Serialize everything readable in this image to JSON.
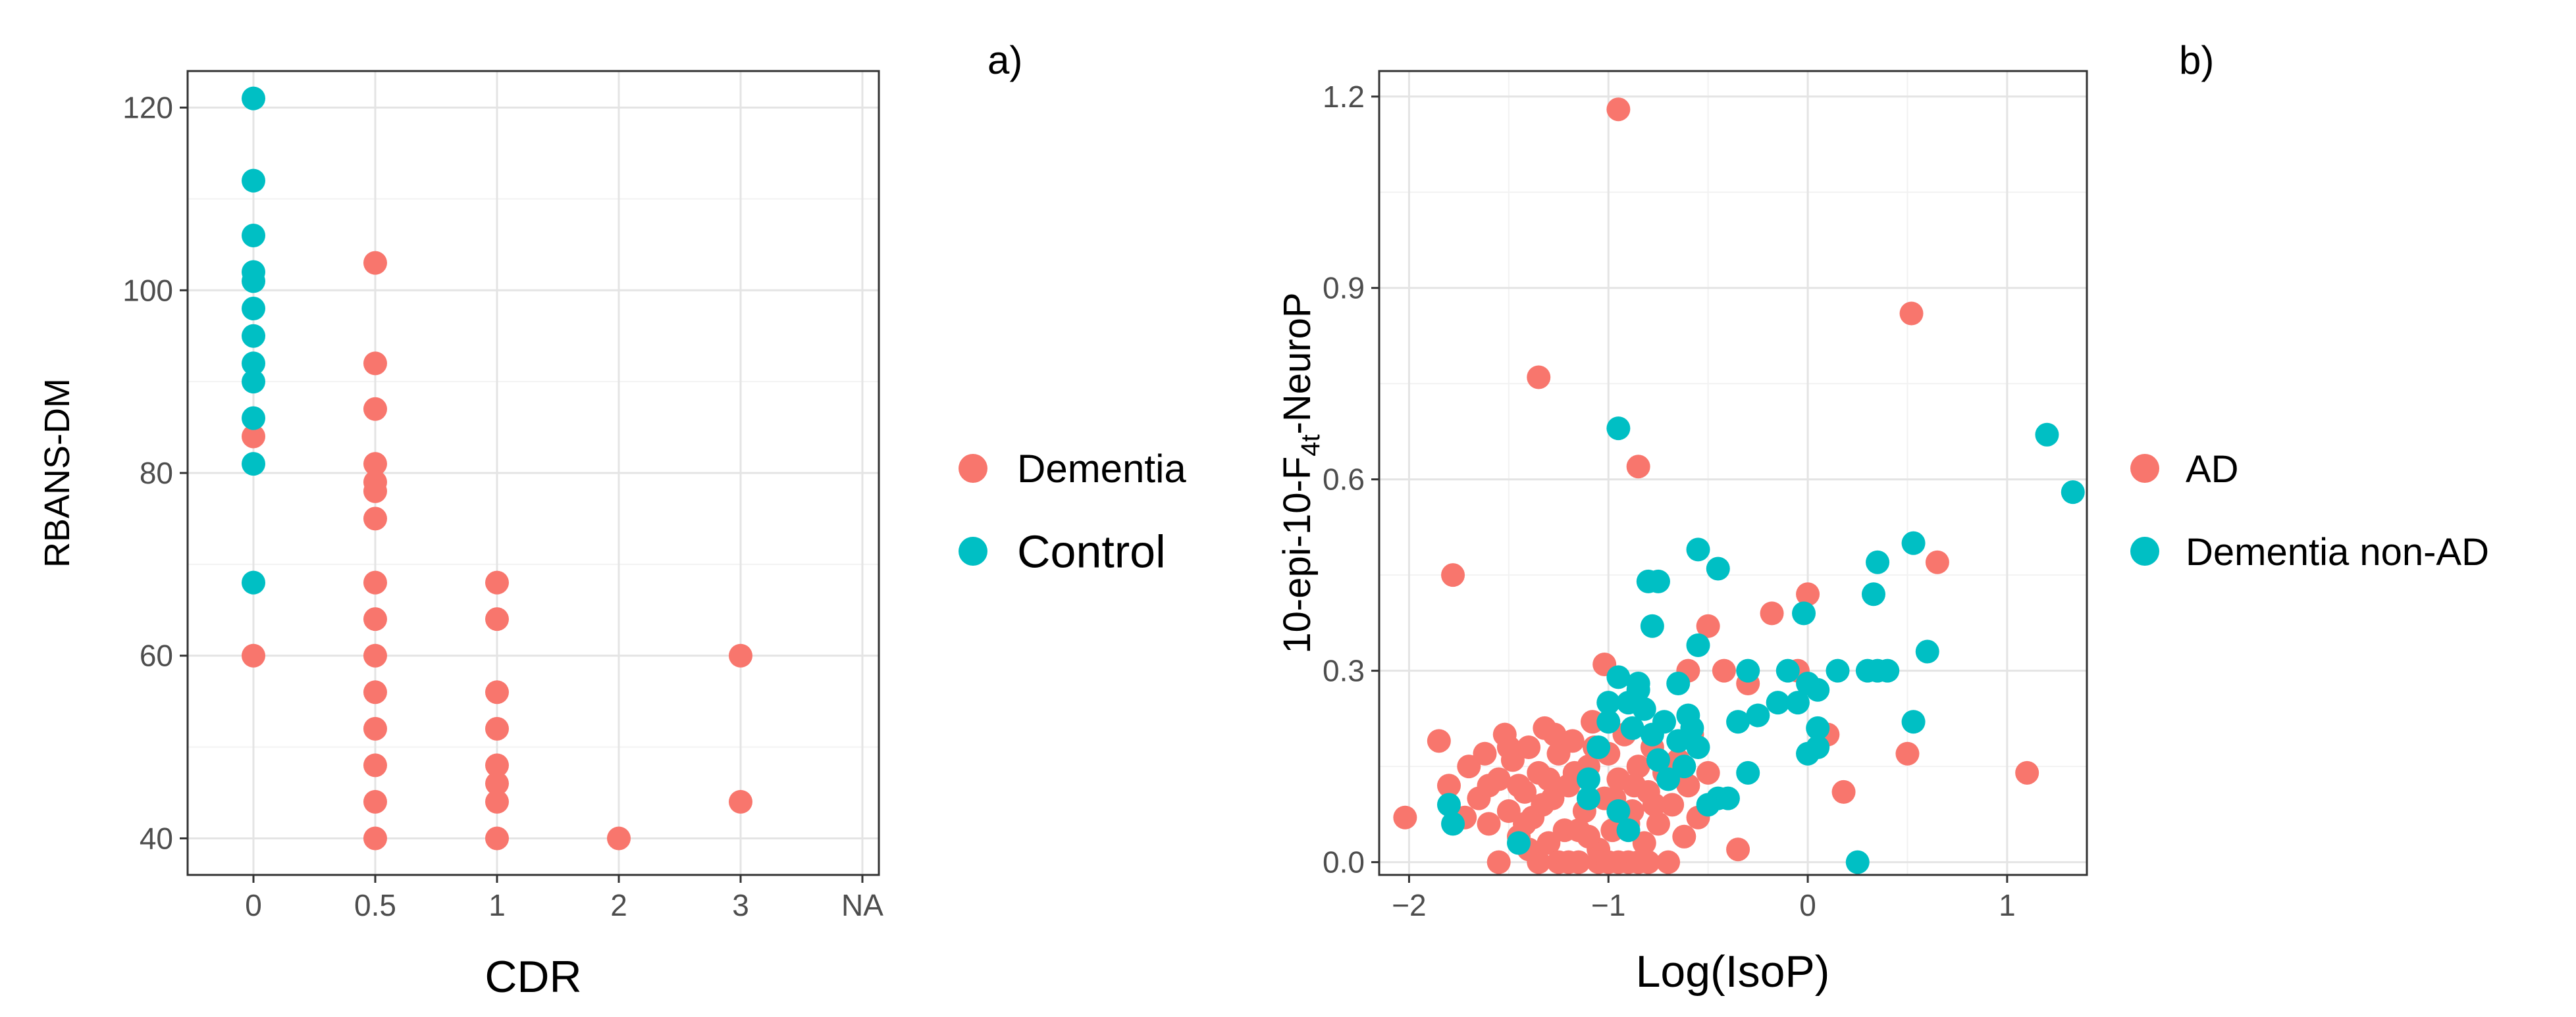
{
  "panels": [
    {
      "letter": "a)"
    },
    {
      "letter": "b)"
    }
  ],
  "colors": {
    "red": "#F8766D",
    "teal": "#00BFC4",
    "grid_major": "#E4E4E4",
    "grid_minor": "#F2F2F2",
    "panel_border": "#333333",
    "text": "#4D4D4D"
  },
  "chart_data": [
    {
      "type": "scatter",
      "title": "",
      "xlabel": "CDR",
      "ylabel": "RBANS-DM",
      "x_scale": "categorical",
      "x_categories": [
        "0",
        "0.5",
        "1",
        "2",
        "3",
        "NA"
      ],
      "yticks": [
        40,
        60,
        80,
        100,
        120
      ],
      "ylim": [
        36,
        124
      ],
      "grid": true,
      "legend": {
        "placement": "right",
        "entries": [
          "Dementia",
          "Control"
        ]
      },
      "series": [
        {
          "name": "Dementia",
          "color": "#F8766D",
          "points": [
            [
              "0",
              84
            ],
            [
              "0",
              60
            ],
            [
              "0.5",
              103
            ],
            [
              "0.5",
              92
            ],
            [
              "0.5",
              87
            ],
            [
              "0.5",
              81
            ],
            [
              "0.5",
              79
            ],
            [
              "0.5",
              78
            ],
            [
              "0.5",
              75
            ],
            [
              "0.5",
              68
            ],
            [
              "0.5",
              64
            ],
            [
              "0.5",
              60
            ],
            [
              "0.5",
              56
            ],
            [
              "0.5",
              52
            ],
            [
              "0.5",
              48
            ],
            [
              "0.5",
              44
            ],
            [
              "0.5",
              40
            ],
            [
              "1",
              68
            ],
            [
              "1",
              64
            ],
            [
              "1",
              56
            ],
            [
              "1",
              52
            ],
            [
              "1",
              48
            ],
            [
              "1",
              46
            ],
            [
              "1",
              44
            ],
            [
              "1",
              40
            ],
            [
              "2",
              40
            ],
            [
              "3",
              60
            ],
            [
              "3",
              44
            ]
          ]
        },
        {
          "name": "Control",
          "color": "#00BFC4",
          "points": [
            [
              "0",
              121
            ],
            [
              "0",
              112
            ],
            [
              "0",
              106
            ],
            [
              "0",
              102
            ],
            [
              "0",
              101
            ],
            [
              "0",
              98
            ],
            [
              "0",
              95
            ],
            [
              "0",
              92
            ],
            [
              "0",
              90
            ],
            [
              "0",
              86
            ],
            [
              "0",
              81
            ],
            [
              "0",
              68
            ]
          ]
        }
      ]
    },
    {
      "type": "scatter",
      "title": "",
      "xlabel": "Log(IsoP)",
      "ylabel": "10-epi-10-F4t-NeuroP",
      "ylabel_parts": {
        "main": "10-epi-10-F",
        "sub": "4t",
        "tail": "-NeuroP"
      },
      "xticks": [
        -2,
        -1,
        0,
        1
      ],
      "yticks": [
        0.0,
        0.3,
        0.6,
        0.9,
        1.2
      ],
      "ytick_labels": [
        "0.0",
        "0.3",
        "0.6",
        "0.9",
        "1.2"
      ],
      "xlim": [
        -2.15,
        1.4
      ],
      "ylim": [
        -0.02,
        1.24
      ],
      "grid": true,
      "legend": {
        "placement": "right",
        "entries": [
          "AD",
          "Dementia non-AD"
        ]
      },
      "series": [
        {
          "name": "AD",
          "color": "#F8766D",
          "points": [
            [
              -0.95,
              1.18
            ],
            [
              0.52,
              0.86
            ],
            [
              -1.35,
              0.76
            ],
            [
              -0.85,
              0.62
            ],
            [
              -1.78,
              0.45
            ],
            [
              0.65,
              0.47
            ],
            [
              0.0,
              0.42
            ],
            [
              -0.18,
              0.39
            ],
            [
              -0.5,
              0.37
            ],
            [
              -0.6,
              0.3
            ],
            [
              -0.42,
              0.3
            ],
            [
              -0.3,
              0.28
            ],
            [
              -0.05,
              0.3
            ],
            [
              -1.02,
              0.31
            ],
            [
              -1.85,
              0.19
            ],
            [
              -2.02,
              0.07
            ],
            [
              0.5,
              0.17
            ],
            [
              1.1,
              0.14
            ],
            [
              0.18,
              0.11
            ],
            [
              0.1,
              0.2
            ],
            [
              -0.35,
              0.02
            ],
            [
              -0.5,
              0.14
            ],
            [
              -1.7,
              0.15
            ],
            [
              -1.65,
              0.1
            ],
            [
              -1.62,
              0.17
            ],
            [
              -1.6,
              0.06
            ],
            [
              -1.55,
              0.13
            ],
            [
              -1.52,
              0.2
            ],
            [
              -1.5,
              0.08
            ],
            [
              -1.48,
              0.16
            ],
            [
              -1.45,
              0.04
            ],
            [
              -1.42,
              0.11
            ],
            [
              -1.4,
              0.18
            ],
            [
              -1.38,
              0.07
            ],
            [
              -1.35,
              0.14
            ],
            [
              -1.32,
              0.21
            ],
            [
              -1.3,
              0.03
            ],
            [
              -1.28,
              0.1
            ],
            [
              -1.25,
              0.17
            ],
            [
              -1.22,
              0.05
            ],
            [
              -1.2,
              0.12
            ],
            [
              -1.18,
              0.19
            ],
            [
              -1.15,
              0.0
            ],
            [
              -1.12,
              0.08
            ],
            [
              -1.1,
              0.15
            ],
            [
              -1.08,
              0.22
            ],
            [
              -1.05,
              0.02
            ],
            [
              -1.02,
              0.1
            ],
            [
              -1.0,
              0.17
            ],
            [
              -0.98,
              0.05
            ],
            [
              -0.95,
              0.13
            ],
            [
              -0.92,
              0.2
            ],
            [
              -0.9,
              0.0
            ],
            [
              -0.88,
              0.08
            ],
            [
              -0.85,
              0.15
            ],
            [
              -0.82,
              0.03
            ],
            [
              -0.8,
              0.11
            ],
            [
              -0.78,
              0.18
            ],
            [
              -0.75,
              0.06
            ],
            [
              -0.72,
              0.14
            ],
            [
              -0.7,
              0.0
            ],
            [
              -0.68,
              0.09
            ],
            [
              -0.65,
              0.16
            ],
            [
              -0.62,
              0.04
            ],
            [
              -0.6,
              0.12
            ],
            [
              -0.58,
              0.2
            ],
            [
              -0.55,
              0.07
            ],
            [
              -1.45,
              0.12
            ],
            [
              -1.35,
              0.0
            ],
            [
              -1.25,
              0.0
            ],
            [
              -1.15,
              0.05
            ],
            [
              -1.05,
              0.0
            ],
            [
              -0.95,
              0.0
            ],
            [
              -0.85,
              0.0
            ],
            [
              -1.55,
              0.0
            ],
            [
              -1.4,
              0.02
            ],
            [
              -1.3,
              0.13
            ],
            [
              -1.2,
              0.0
            ],
            [
              -1.1,
              0.04
            ],
            [
              -1.0,
              0.0
            ],
            [
              -0.9,
              0.06
            ],
            [
              -0.8,
              0.0
            ],
            [
              -1.6,
              0.12
            ],
            [
              -1.5,
              0.18
            ],
            [
              -1.42,
              0.06
            ],
            [
              -1.33,
              0.09
            ],
            [
              -1.27,
              0.2
            ],
            [
              -1.17,
              0.14
            ],
            [
              -1.07,
              0.18
            ],
            [
              -0.97,
              0.1
            ],
            [
              -0.87,
              0.12
            ],
            [
              -0.77,
              0.09
            ],
            [
              -1.72,
              0.07
            ],
            [
              -1.8,
              0.12
            ]
          ]
        },
        {
          "name": "Dementia non-AD",
          "color": "#00BFC4",
          "points": [
            [
              1.2,
              0.67
            ],
            [
              1.33,
              0.58
            ],
            [
              -0.95,
              0.68
            ],
            [
              0.53,
              0.5
            ],
            [
              -0.55,
              0.49
            ],
            [
              -0.45,
              0.46
            ],
            [
              0.35,
              0.47
            ],
            [
              0.33,
              0.42
            ],
            [
              -0.8,
              0.44
            ],
            [
              -0.75,
              0.44
            ],
            [
              -0.55,
              0.34
            ],
            [
              0.6,
              0.33
            ],
            [
              -0.78,
              0.37
            ],
            [
              -0.02,
              0.39
            ],
            [
              -0.3,
              0.3
            ],
            [
              -0.1,
              0.3
            ],
            [
              0.05,
              0.27
            ],
            [
              0.15,
              0.3
            ],
            [
              0.3,
              0.3
            ],
            [
              0.35,
              0.3
            ],
            [
              0.4,
              0.3
            ],
            [
              -0.15,
              0.25
            ],
            [
              -0.05,
              0.25
            ],
            [
              0.0,
              0.28
            ],
            [
              0.05,
              0.21
            ],
            [
              0.05,
              0.18
            ],
            [
              0.53,
              0.22
            ],
            [
              -0.95,
              0.29
            ],
            [
              -0.9,
              0.25
            ],
            [
              -0.88,
              0.21
            ],
            [
              -0.85,
              0.27
            ],
            [
              -0.82,
              0.24
            ],
            [
              -0.78,
              0.2
            ],
            [
              -0.75,
              0.16
            ],
            [
              -0.72,
              0.22
            ],
            [
              -0.7,
              0.13
            ],
            [
              -0.65,
              0.19
            ],
            [
              -0.62,
              0.15
            ],
            [
              -0.58,
              0.21
            ],
            [
              -0.55,
              0.18
            ],
            [
              -0.5,
              0.09
            ],
            [
              -0.45,
              0.1
            ],
            [
              -0.4,
              0.1
            ],
            [
              -0.35,
              0.22
            ],
            [
              -0.3,
              0.14
            ],
            [
              -0.25,
              0.23
            ],
            [
              -1.0,
              0.25
            ],
            [
              -1.0,
              0.22
            ],
            [
              -1.05,
              0.18
            ],
            [
              -1.1,
              0.1
            ],
            [
              -1.1,
              0.13
            ],
            [
              -0.95,
              0.08
            ],
            [
              -0.9,
              0.05
            ],
            [
              -1.45,
              0.03
            ],
            [
              -1.8,
              0.09
            ],
            [
              -1.78,
              0.06
            ],
            [
              0.25,
              0.0
            ],
            [
              -0.0,
              0.17
            ],
            [
              -0.6,
              0.23
            ],
            [
              -0.85,
              0.28
            ],
            [
              -0.65,
              0.28
            ]
          ]
        }
      ]
    }
  ]
}
